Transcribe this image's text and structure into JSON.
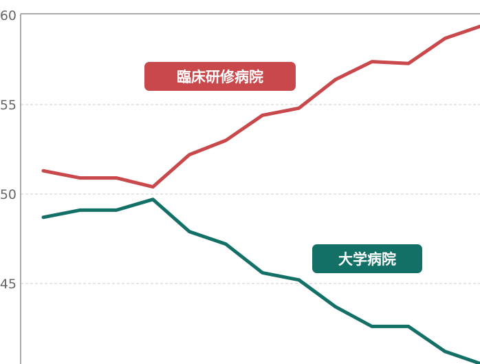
{
  "chart_data": {
    "type": "line",
    "title": "",
    "xlabel": "",
    "ylabel": "",
    "ylim": [
      40,
      60
    ],
    "yticks": [
      "60",
      "55",
      "50",
      "45"
    ],
    "grid": true,
    "x": [
      1,
      2,
      3,
      4,
      5,
      6,
      7,
      8,
      9,
      10,
      11,
      12,
      13
    ],
    "series": [
      {
        "name": "臨床研修病院",
        "color": "#c9484b",
        "values": [
          51.3,
          50.9,
          50.9,
          50.4,
          52.2,
          53.0,
          54.4,
          54.8,
          56.4,
          57.4,
          57.3,
          58.7,
          59.4
        ]
      },
      {
        "name": "大学病院",
        "color": "#137066",
        "values": [
          48.7,
          49.1,
          49.1,
          49.7,
          47.9,
          47.2,
          45.6,
          45.2,
          43.7,
          42.6,
          42.6,
          41.2,
          40.5
        ]
      }
    ]
  }
}
